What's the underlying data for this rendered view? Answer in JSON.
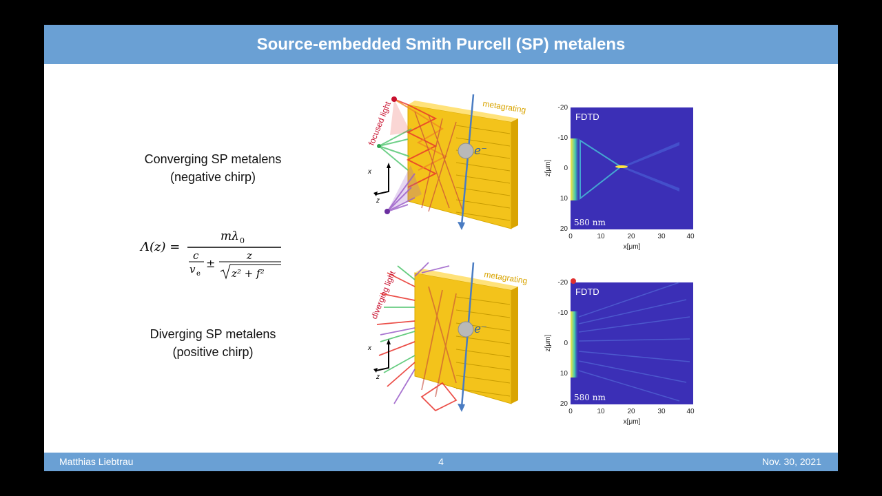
{
  "title": "Source-embedded Smith Purcell (SP) metalens",
  "footer": {
    "author": "Matthias Liebtrau",
    "page": "4",
    "date": "Nov. 30, 2021"
  },
  "left": {
    "converging": {
      "line1": "Converging SP metalens",
      "line2": "(negative chirp)"
    },
    "formula": {
      "lhs": "Λ(z) =",
      "num": "mλ",
      "num_sub": "0",
      "c": "c",
      "ve": "v",
      "ve_sub": "e",
      "pm": "±",
      "z": "z",
      "sqrt": "z² + f²"
    },
    "diverging": {
      "line1": "Diverging SP metalens",
      "line2": "(positive chirp)"
    }
  },
  "illustrations": {
    "top": {
      "light_label": "focused light",
      "grating_label": "metagrating",
      "electron": "e⁻",
      "axis_x": "x",
      "axis_z": "z"
    },
    "bottom": {
      "light_label": "diverging light",
      "grating_label": "metagrating",
      "electron": "e⁻",
      "axis_x": "x",
      "axis_z": "z"
    }
  },
  "plots": {
    "top": {
      "tag": "FDTD",
      "wavelength": "580 nm",
      "xlabel": "x[μm]",
      "ylabel": "z[μm]",
      "xticks": [
        "0",
        "10",
        "20",
        "30",
        "40"
      ],
      "yticks": [
        "-20",
        "-10",
        "0",
        "10",
        "20"
      ]
    },
    "bottom": {
      "tag": "FDTD",
      "wavelength": "580 nm",
      "xlabel": "x[μm]",
      "ylabel": "z[μm]",
      "xticks": [
        "0",
        "10",
        "20",
        "30",
        "40"
      ],
      "yticks": [
        "-20",
        "-10",
        "0",
        "10",
        "20"
      ]
    }
  },
  "colors": {
    "accent": "#6aa0d4",
    "grating": "#f5c518",
    "field_bg": "#3b2fb6"
  }
}
